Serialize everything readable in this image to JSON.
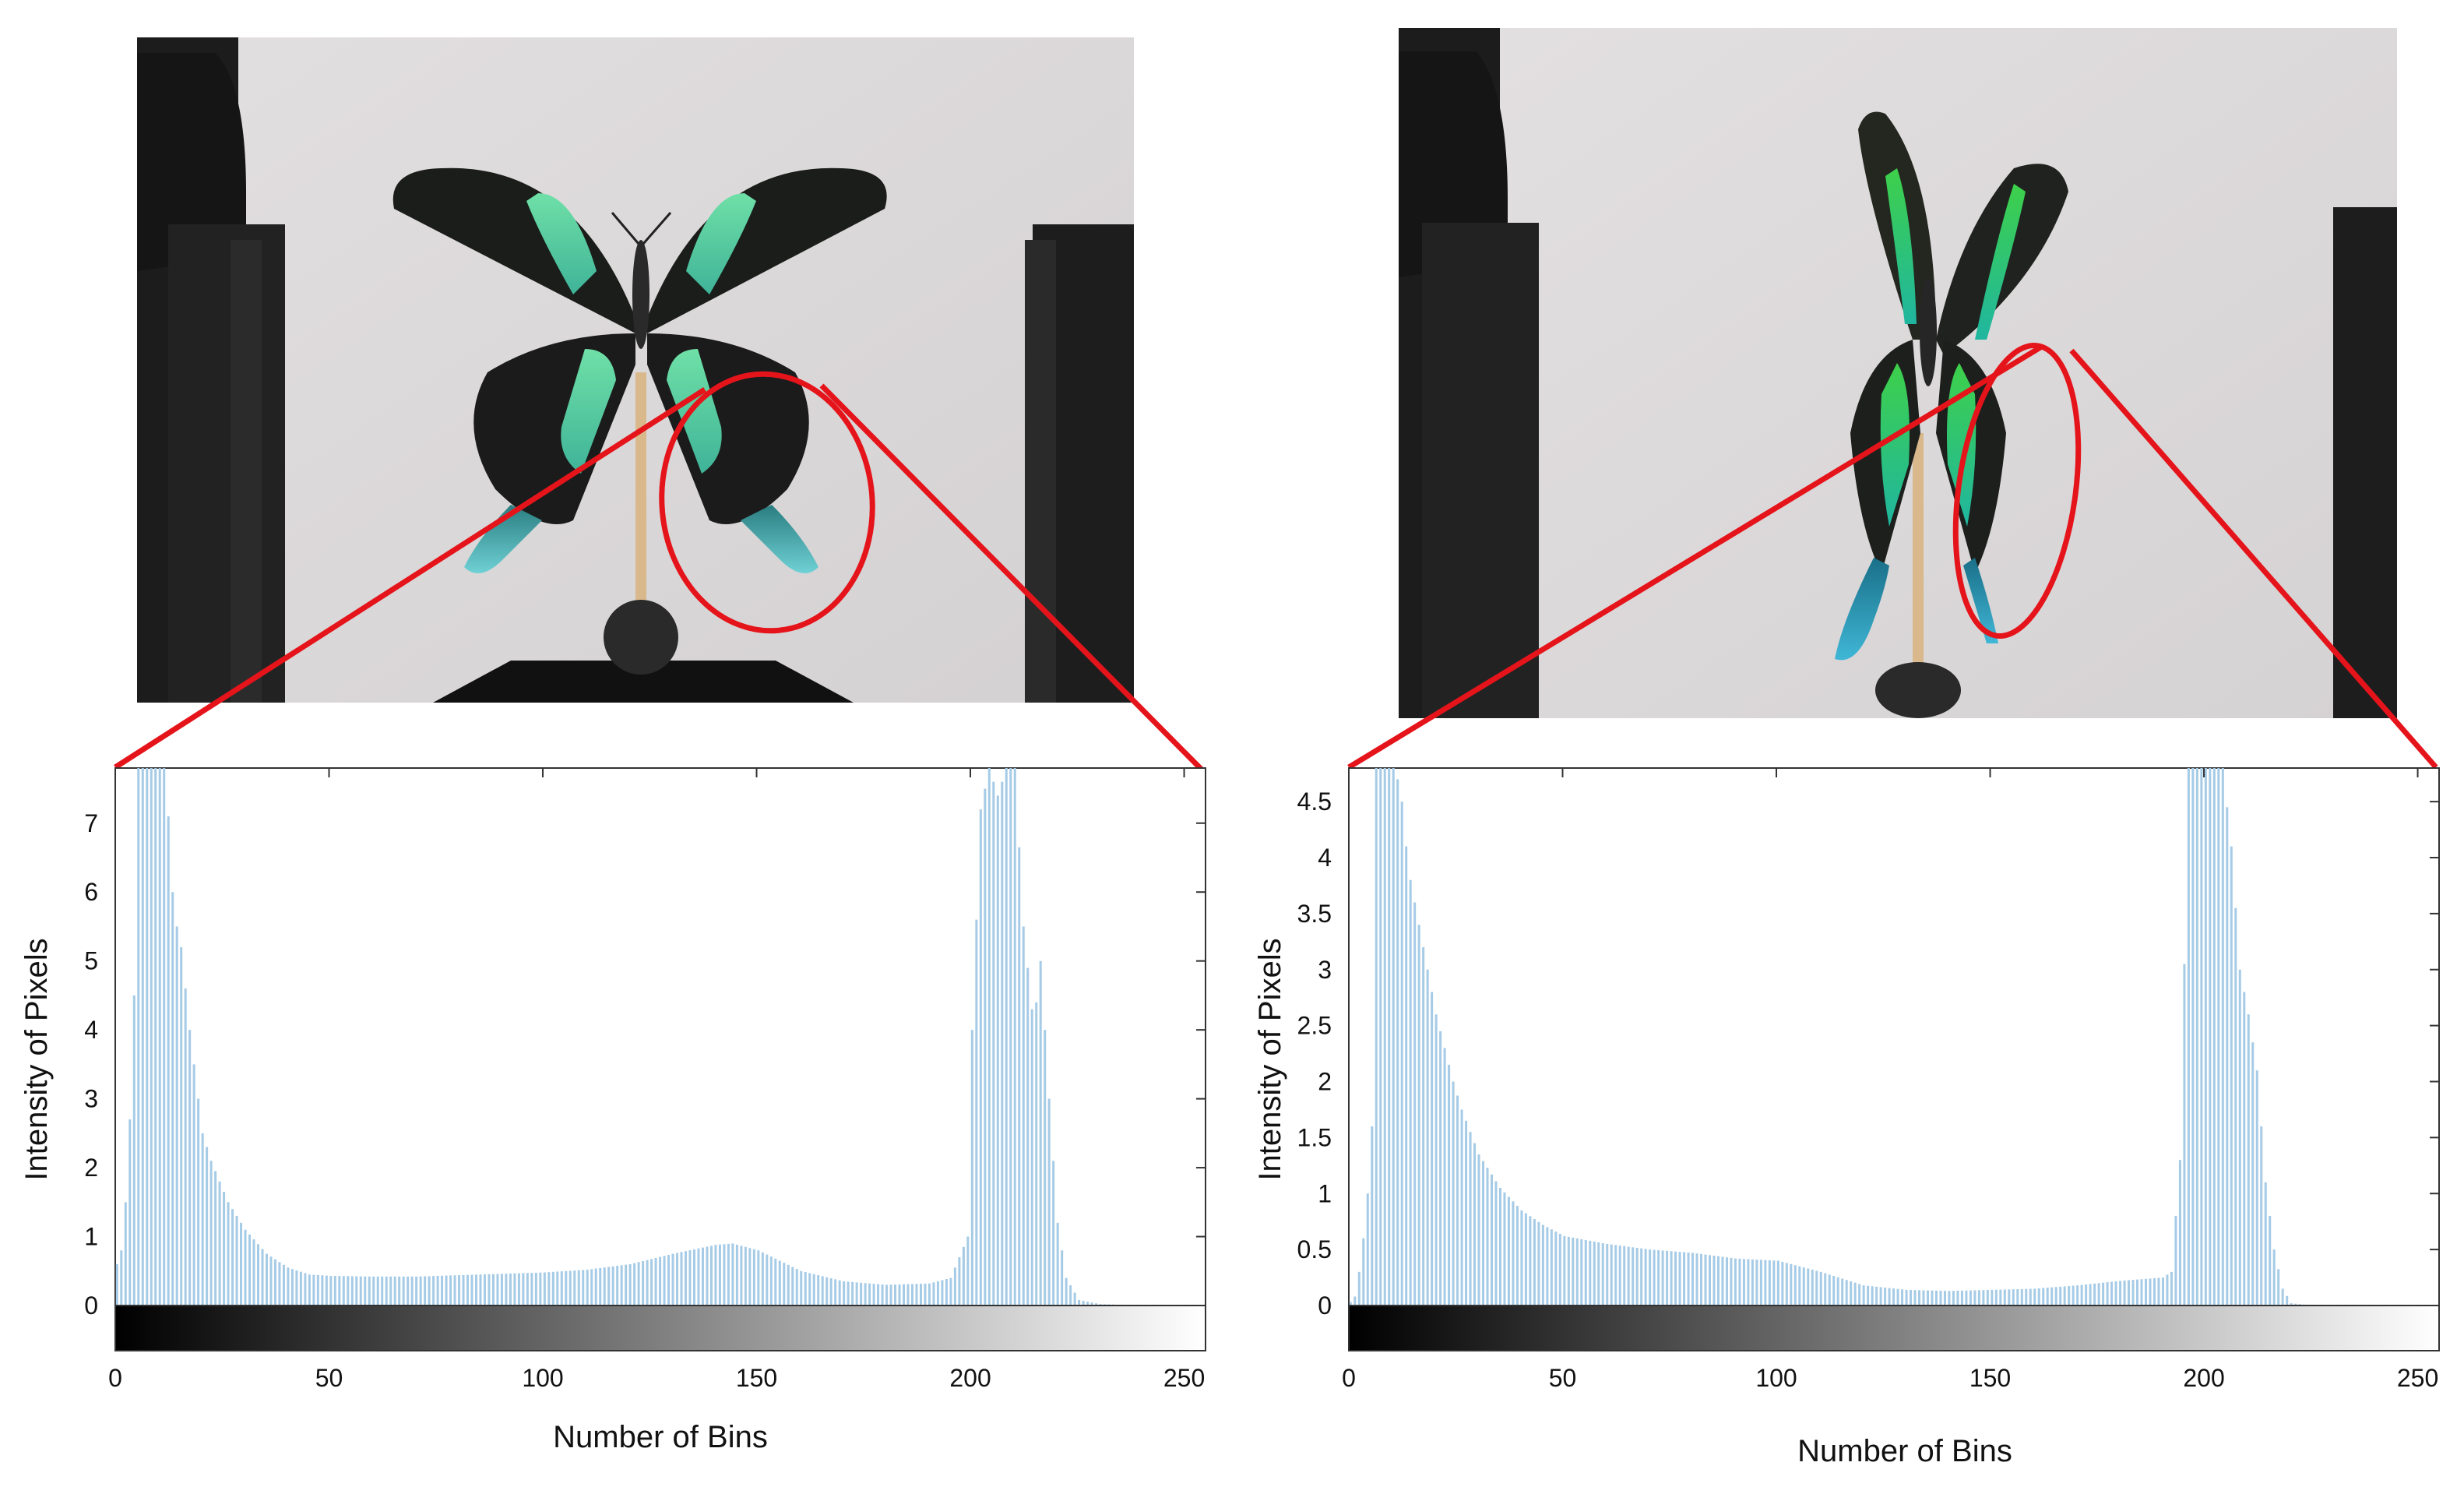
{
  "chart_data": [
    {
      "type": "bar",
      "title": "",
      "xlabel": "Number of Bins",
      "ylabel": "Intensity of Pixels",
      "xlim": [
        0,
        255
      ],
      "ylim": [
        0,
        7.8
      ],
      "x_ticks": [
        "0",
        "50",
        "100",
        "150",
        "200",
        "250"
      ],
      "y_ticks": [
        "0",
        "1",
        "2",
        "3",
        "4",
        "5",
        "6",
        "7"
      ],
      "bar_color": "#a6cbe6",
      "colorbar": "grayscale 0-255",
      "x": [
        0,
        1,
        2,
        3,
        4,
        5,
        6,
        7,
        8,
        9,
        10,
        11,
        12,
        13,
        14,
        15,
        16,
        17,
        18,
        19,
        20,
        22,
        24,
        26,
        28,
        30,
        35,
        40,
        45,
        50,
        60,
        70,
        80,
        90,
        100,
        110,
        120,
        130,
        140,
        144,
        150,
        160,
        170,
        180,
        190,
        195,
        199,
        200,
        202,
        204,
        206,
        208,
        210,
        212,
        214,
        215,
        216,
        218,
        220,
        222,
        225,
        230,
        240,
        250,
        255
      ],
      "values": [
        0.6,
        0.8,
        1.5,
        2.7,
        4.5,
        7.8,
        7.8,
        7.8,
        7.8,
        7.8,
        7.8,
        7.8,
        7.1,
        6.0,
        5.5,
        5.2,
        4.6,
        4.0,
        3.5,
        3.0,
        2.5,
        2.1,
        1.8,
        1.5,
        1.3,
        1.1,
        0.75,
        0.55,
        0.45,
        0.43,
        0.42,
        0.42,
        0.44,
        0.46,
        0.48,
        0.52,
        0.6,
        0.75,
        0.88,
        0.9,
        0.8,
        0.5,
        0.35,
        0.3,
        0.32,
        0.4,
        1.0,
        4.0,
        7.2,
        7.8,
        7.4,
        7.8,
        7.8,
        5.5,
        4.3,
        4.4,
        5.0,
        3.0,
        1.2,
        0.4,
        0.08,
        0.02,
        0.0,
        0.0,
        0.0
      ],
      "legend": null,
      "grid": false
    },
    {
      "type": "bar",
      "title": "",
      "xlabel": "Number of Bins",
      "ylabel": "Intensity of Pixels",
      "xlim": [
        0,
        255
      ],
      "ylim": [
        0,
        4.8
      ],
      "x_ticks": [
        "0",
        "50",
        "100",
        "150",
        "200",
        "250"
      ],
      "y_ticks": [
        "0",
        "0.5",
        "1",
        "1.5",
        "2",
        "2.5",
        "3",
        "3.5",
        "4",
        "4.5"
      ],
      "bar_color": "#a6cbe6",
      "colorbar": "grayscale 0-255",
      "x": [
        0,
        1,
        2,
        3,
        4,
        5,
        6,
        7,
        8,
        9,
        10,
        11,
        12,
        13,
        14,
        15,
        16,
        17,
        18,
        19,
        20,
        22,
        24,
        26,
        28,
        30,
        35,
        40,
        45,
        50,
        60,
        70,
        80,
        90,
        100,
        110,
        120,
        130,
        140,
        150,
        160,
        170,
        180,
        190,
        192,
        194,
        196,
        198,
        200,
        202,
        204,
        206,
        208,
        210,
        212,
        214,
        216,
        218,
        220,
        225,
        230,
        240,
        250,
        255
      ],
      "values": [
        0.03,
        0.08,
        0.3,
        0.6,
        1.0,
        1.6,
        4.8,
        4.8,
        4.8,
        4.8,
        4.8,
        4.7,
        4.5,
        4.1,
        3.8,
        3.6,
        3.4,
        3.2,
        3.0,
        2.8,
        2.6,
        2.3,
        2.0,
        1.75,
        1.55,
        1.35,
        1.05,
        0.85,
        0.72,
        0.62,
        0.55,
        0.5,
        0.47,
        0.42,
        0.4,
        0.3,
        0.18,
        0.14,
        0.13,
        0.14,
        0.15,
        0.18,
        0.22,
        0.25,
        0.3,
        1.3,
        4.8,
        4.8,
        4.8,
        4.8,
        4.8,
        4.1,
        3.0,
        2.6,
        2.1,
        1.1,
        0.5,
        0.15,
        0.02,
        0.0,
        0.0,
        0.0,
        0.0,
        0.0
      ],
      "legend": null,
      "grid": false
    }
  ],
  "colors": {
    "annotation": "#e5141b",
    "bars": "#a6cbe6",
    "background": "#ffffff",
    "photo_background": "#dcd9da"
  },
  "photos": [
    {
      "subject": "butterfly specimen, wings open, on rotating mount",
      "highlight": "hindwing circled in red"
    },
    {
      "subject": "butterfly specimen, rotated, on rotating mount",
      "highlight": "hindwing circled in red"
    }
  ]
}
